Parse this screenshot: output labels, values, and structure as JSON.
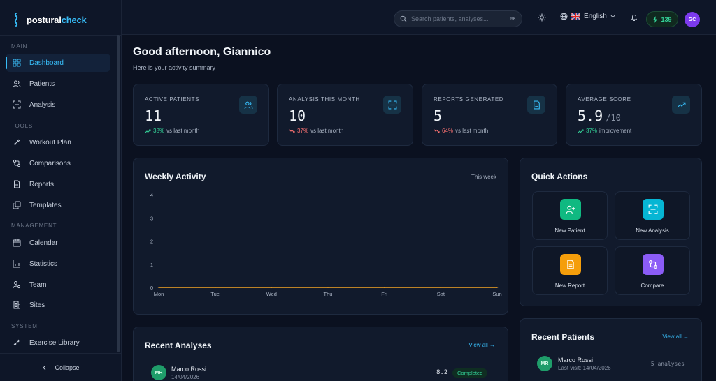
{
  "brand": {
    "name_prefix": "postural",
    "name_suffix": "check"
  },
  "sidebar": {
    "sections": {
      "main": "MAIN",
      "tools": "TOOLS",
      "management": "MANAGEMENT",
      "system": "SYSTEM"
    },
    "items": {
      "dashboard": "Dashboard",
      "patients": "Patients",
      "analysis": "Analysis",
      "workout": "Workout Plan",
      "comparisons": "Comparisons",
      "reports": "Reports",
      "templates": "Templates",
      "calendar": "Calendar",
      "statistics": "Statistics",
      "team": "Team",
      "sites": "Sites",
      "exercise": "Exercise Library"
    },
    "collapse": "Collapse"
  },
  "topbar": {
    "search_placeholder": "Search patients, analyses...",
    "shortcut": "⌘K",
    "language": "English",
    "credits": "139",
    "avatar": "GC"
  },
  "header": {
    "greeting": "Good afternoon, Giannico",
    "subtitle": "Here is your activity summary"
  },
  "stats": [
    {
      "label": "ACTIVE PATIENTS",
      "value": "11",
      "suffix": "",
      "change": "38%",
      "change_text": "vs last month",
      "direction": "up"
    },
    {
      "label": "ANALYSIS THIS MONTH",
      "value": "10",
      "suffix": "",
      "change": "37%",
      "change_text": "vs last month",
      "direction": "down"
    },
    {
      "label": "REPORTS GENERATED",
      "value": "5",
      "suffix": "",
      "change": "64%",
      "change_text": "vs last month",
      "direction": "down"
    },
    {
      "label": "AVERAGE SCORE",
      "value": "5.9",
      "suffix": "/10",
      "change": "37%",
      "change_text": "improvement",
      "direction": "up"
    }
  ],
  "weekly": {
    "title": "Weekly Activity",
    "period": "This week"
  },
  "chart_data": {
    "type": "line",
    "categories": [
      "Mon",
      "Tue",
      "Wed",
      "Thu",
      "Fri",
      "Sat",
      "Sun"
    ],
    "values": [
      0,
      0,
      0,
      0,
      0,
      0,
      0
    ],
    "y_ticks": [
      "0",
      "1",
      "2",
      "3",
      "4"
    ],
    "ylim": [
      0,
      4
    ],
    "title": "",
    "xlabel": "",
    "ylabel": "",
    "grid": false,
    "line_color": "#f5a524"
  },
  "quick_actions": {
    "title": "Quick Actions",
    "items": [
      {
        "label": "New Patient",
        "color": "#10b981",
        "icon": "user-plus-icon"
      },
      {
        "label": "New Analysis",
        "color": "#06b6d4",
        "icon": "scan-icon"
      },
      {
        "label": "New Report",
        "color": "#f59e0b",
        "icon": "document-icon"
      },
      {
        "label": "Compare",
        "color": "#8b5cf6",
        "icon": "compare-icon"
      }
    ]
  },
  "recent_analyses": {
    "title": "Recent Analyses",
    "view_all": "View all →",
    "rows": [
      {
        "initials": "MR",
        "name": "Marco Rossi",
        "date": "14/04/2026",
        "score": "8.2",
        "status": "Completed"
      }
    ]
  },
  "recent_patients": {
    "title": "Recent Patients",
    "view_all": "View all →",
    "rows": [
      {
        "initials": "MR",
        "name": "Marco Rossi",
        "last_visit": "Last visit: 14/04/2026",
        "analyses": "5 analyses"
      }
    ]
  }
}
